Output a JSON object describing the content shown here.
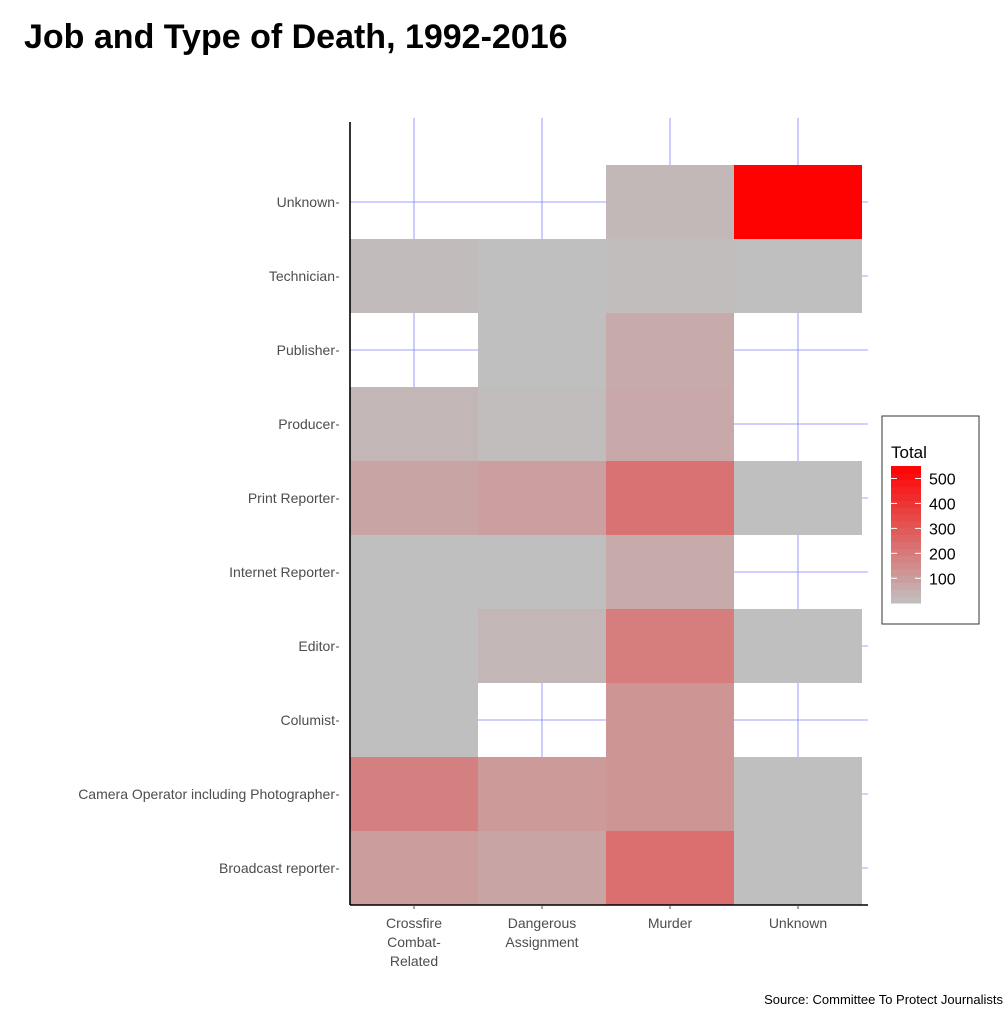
{
  "title": "Job and Type of Death, 1992-2016",
  "caption": "Source: Committee To Protect Journalists",
  "chart_data": {
    "type": "heatmap",
    "title": "Job and Type of Death, 1992-2016",
    "x_categories": [
      "Crossfire Combat-Related",
      "Dangerous Assignment",
      "Murder",
      "Unknown"
    ],
    "x_tick_lines": [
      [
        "Crossfire",
        "Combat-",
        "Related"
      ],
      [
        "Dangerous",
        "Assignment"
      ],
      [
        "Murder"
      ],
      [
        "Unknown"
      ]
    ],
    "y_categories": [
      "Broadcast reporter",
      "Camera Operator including Photographer",
      "Columist",
      "Editor",
      "Internet Reporter",
      "Print Reporter",
      "Producer",
      "Publisher",
      "Technician",
      "Unknown"
    ],
    "cells": [
      {
        "x": "Crossfire Combat-Related",
        "y": "Broadcast reporter",
        "value": 100
      },
      {
        "x": "Dangerous Assignment",
        "y": "Broadcast reporter",
        "value": 80
      },
      {
        "x": "Murder",
        "y": "Broadcast reporter",
        "value": 235
      },
      {
        "x": "Unknown",
        "y": "Broadcast reporter",
        "value": 5
      },
      {
        "x": "Crossfire Combat-Related",
        "y": "Camera Operator including Photographer",
        "value": 185
      },
      {
        "x": "Dangerous Assignment",
        "y": "Camera Operator including Photographer",
        "value": 110
      },
      {
        "x": "Murder",
        "y": "Camera Operator including Photographer",
        "value": 125
      },
      {
        "x": "Unknown",
        "y": "Camera Operator including Photographer",
        "value": 5
      },
      {
        "x": "Crossfire Combat-Related",
        "y": "Columist",
        "value": 5
      },
      {
        "x": "Murder",
        "y": "Columist",
        "value": 125
      },
      {
        "x": "Crossfire Combat-Related",
        "y": "Editor",
        "value": 5
      },
      {
        "x": "Dangerous Assignment",
        "y": "Editor",
        "value": 30
      },
      {
        "x": "Murder",
        "y": "Editor",
        "value": 190
      },
      {
        "x": "Unknown",
        "y": "Editor",
        "value": 5
      },
      {
        "x": "Crossfire Combat-Related",
        "y": "Internet Reporter",
        "value": 5
      },
      {
        "x": "Dangerous Assignment",
        "y": "Internet Reporter",
        "value": 5
      },
      {
        "x": "Murder",
        "y": "Internet Reporter",
        "value": 60
      },
      {
        "x": "Crossfire Combat-Related",
        "y": "Print Reporter",
        "value": 80
      },
      {
        "x": "Dangerous Assignment",
        "y": "Print Reporter",
        "value": 95
      },
      {
        "x": "Murder",
        "y": "Print Reporter",
        "value": 220
      },
      {
        "x": "Unknown",
        "y": "Print Reporter",
        "value": 5
      },
      {
        "x": "Crossfire Combat-Related",
        "y": "Producer",
        "value": 30
      },
      {
        "x": "Dangerous Assignment",
        "y": "Producer",
        "value": 10
      },
      {
        "x": "Murder",
        "y": "Producer",
        "value": 70
      },
      {
        "x": "Dangerous Assignment",
        "y": "Publisher",
        "value": 5
      },
      {
        "x": "Murder",
        "y": "Publisher",
        "value": 65
      },
      {
        "x": "Crossfire Combat-Related",
        "y": "Technician",
        "value": 15
      },
      {
        "x": "Dangerous Assignment",
        "y": "Technician",
        "value": 5
      },
      {
        "x": "Murder",
        "y": "Technician",
        "value": 10
      },
      {
        "x": "Unknown",
        "y": "Technician",
        "value": 5
      },
      {
        "x": "Murder",
        "y": "Unknown",
        "value": 25
      },
      {
        "x": "Unknown",
        "y": "Unknown",
        "value": 545
      }
    ],
    "color_scale": {
      "low": "#c0c0c0",
      "high": "#ff0000",
      "min": 1,
      "max": 550
    },
    "legend": {
      "title": "Total",
      "ticks": [
        100,
        200,
        300,
        400,
        500
      ],
      "position": "right"
    },
    "grid": true,
    "grid_color": "#8080ff"
  }
}
